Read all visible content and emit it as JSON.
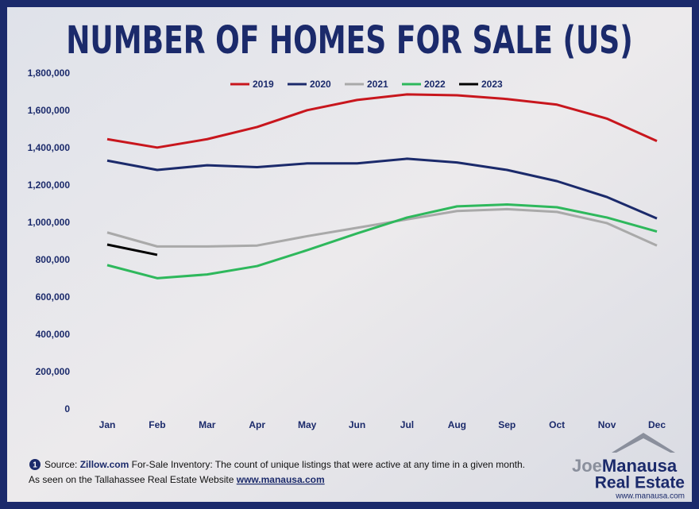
{
  "chart_data": {
    "type": "line",
    "title": "NUMBER OF HOMES FOR SALE (US)",
    "categories": [
      "Jan",
      "Feb",
      "Mar",
      "Apr",
      "May",
      "Jun",
      "Jul",
      "Aug",
      "Sep",
      "Oct",
      "Nov",
      "Dec"
    ],
    "series": [
      {
        "name": "2019",
        "color": "#c8161d",
        "values": [
          1450000,
          1405000,
          1450000,
          1515000,
          1605000,
          1660000,
          1690000,
          1685000,
          1665000,
          1635000,
          1560000,
          1440000
        ]
      },
      {
        "name": "2020",
        "color": "#1b2a6b",
        "values": [
          1335000,
          1285000,
          1310000,
          1300000,
          1320000,
          1320000,
          1345000,
          1325000,
          1285000,
          1225000,
          1140000,
          1025000
        ]
      },
      {
        "name": "2021",
        "color": "#a9a9a9",
        "values": [
          950000,
          875000,
          875000,
          880000,
          930000,
          975000,
          1020000,
          1065000,
          1075000,
          1060000,
          1000000,
          880000
        ]
      },
      {
        "name": "2022",
        "color": "#2eb85c",
        "values": [
          775000,
          705000,
          725000,
          770000,
          855000,
          945000,
          1030000,
          1090000,
          1100000,
          1085000,
          1030000,
          955000
        ]
      },
      {
        "name": "2023",
        "color": "#000000",
        "values": [
          885000,
          830000,
          null,
          null,
          null,
          null,
          null,
          null,
          null,
          null,
          null,
          null
        ]
      }
    ],
    "ylim": [
      0,
      1800000
    ],
    "yticks": [
      0,
      {
        "value": 200000,
        "label": "200,000"
      },
      {
        "value": 400000,
        "label": "400,000"
      },
      {
        "value": 600000,
        "label": "600,000"
      },
      {
        "value": 800000,
        "label": "800,000"
      },
      {
        "value": 1000000,
        "label": "1,000,000"
      },
      {
        "value": 1200000,
        "label": "1,200,000"
      },
      {
        "value": 1400000,
        "label": "1,400,000"
      },
      {
        "value": 1600000,
        "label": "1,600,000"
      },
      {
        "value": 1800000,
        "label": "1,800,000"
      }
    ],
    "grid": false,
    "legend": "top"
  },
  "footer": {
    "marker": "1",
    "source_label": "Source:",
    "source_name": "Zillow.com",
    "source_text": "For-Sale Inventory: The count of unique listings that were active at any time in a given month.",
    "seen_text": "As seen on the Tallahassee Real Estate Website",
    "seen_url": "www.manausa.com"
  },
  "logo": {
    "first": "Joe",
    "last": "Manausa",
    "tagline": "Real Estate",
    "url": "www.manausa.com"
  }
}
